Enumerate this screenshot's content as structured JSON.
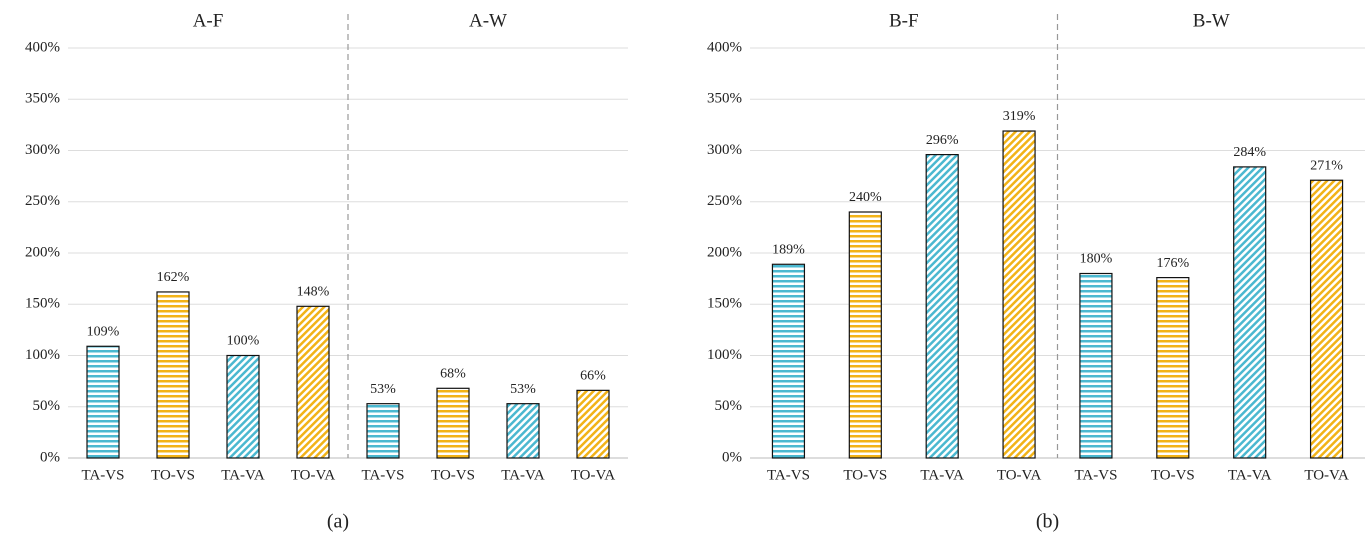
{
  "chart_data": [
    {
      "type": "bar",
      "groups": [
        "A-F",
        "A-W"
      ],
      "categories": [
        "TA-VS",
        "TO-VS",
        "TA-VA",
        "TO-VA",
        "TA-VS",
        "TO-VS",
        "TA-VA",
        "TO-VA"
      ],
      "values": [
        109,
        162,
        100,
        148,
        53,
        68,
        53,
        66
      ],
      "value_labels": [
        "109%",
        "162%",
        "100%",
        "148%",
        "53%",
        "68%",
        "53%",
        "66%"
      ],
      "colors": [
        "#4bb8d0",
        "#f2b318",
        "#4bb8d0",
        "#f2b318",
        "#4bb8d0",
        "#f2b318",
        "#4bb8d0",
        "#f2b318"
      ],
      "patterns": [
        "horizontal",
        "horizontal",
        "diagonal",
        "diagonal",
        "horizontal",
        "horizontal",
        "diagonal",
        "diagonal"
      ],
      "ylim": [
        0,
        400
      ],
      "yticks": [
        {
          "value": 0,
          "label": "0%"
        },
        {
          "value": 50,
          "label": "50%"
        },
        {
          "value": 100,
          "label": "100%"
        },
        {
          "value": 150,
          "label": "150%"
        },
        {
          "value": 200,
          "label": "200%"
        },
        {
          "value": 250,
          "label": "250%"
        },
        {
          "value": 300,
          "label": "300%"
        },
        {
          "value": 350,
          "label": "350%"
        },
        {
          "value": 400,
          "label": "400%"
        }
      ],
      "grid": true,
      "caption": "(a)"
    },
    {
      "type": "bar",
      "groups": [
        "B-F",
        "B-W"
      ],
      "categories": [
        "TA-VS",
        "TO-VS",
        "TA-VA",
        "TO-VA",
        "TA-VS",
        "TO-VS",
        "TA-VA",
        "TO-VA"
      ],
      "values": [
        189,
        240,
        296,
        319,
        180,
        176,
        284,
        271
      ],
      "value_labels": [
        "189%",
        "240%",
        "296%",
        "319%",
        "180%",
        "176%",
        "284%",
        "271%"
      ],
      "colors": [
        "#4bb8d0",
        "#f2b318",
        "#4bb8d0",
        "#f2b318",
        "#4bb8d0",
        "#f2b318",
        "#4bb8d0",
        "#f2b318"
      ],
      "patterns": [
        "horizontal",
        "horizontal",
        "diagonal",
        "diagonal",
        "horizontal",
        "horizontal",
        "diagonal",
        "diagonal"
      ],
      "ylim": [
        0,
        400
      ],
      "yticks": [
        {
          "value": 0,
          "label": "0%"
        },
        {
          "value": 50,
          "label": "50%"
        },
        {
          "value": 100,
          "label": "100%"
        },
        {
          "value": 150,
          "label": "150%"
        },
        {
          "value": 200,
          "label": "200%"
        },
        {
          "value": 250,
          "label": "250%"
        },
        {
          "value": 300,
          "label": "300%"
        },
        {
          "value": 350,
          "label": "350%"
        },
        {
          "value": 400,
          "label": "400%"
        }
      ],
      "grid": true,
      "caption": "(b)"
    }
  ]
}
